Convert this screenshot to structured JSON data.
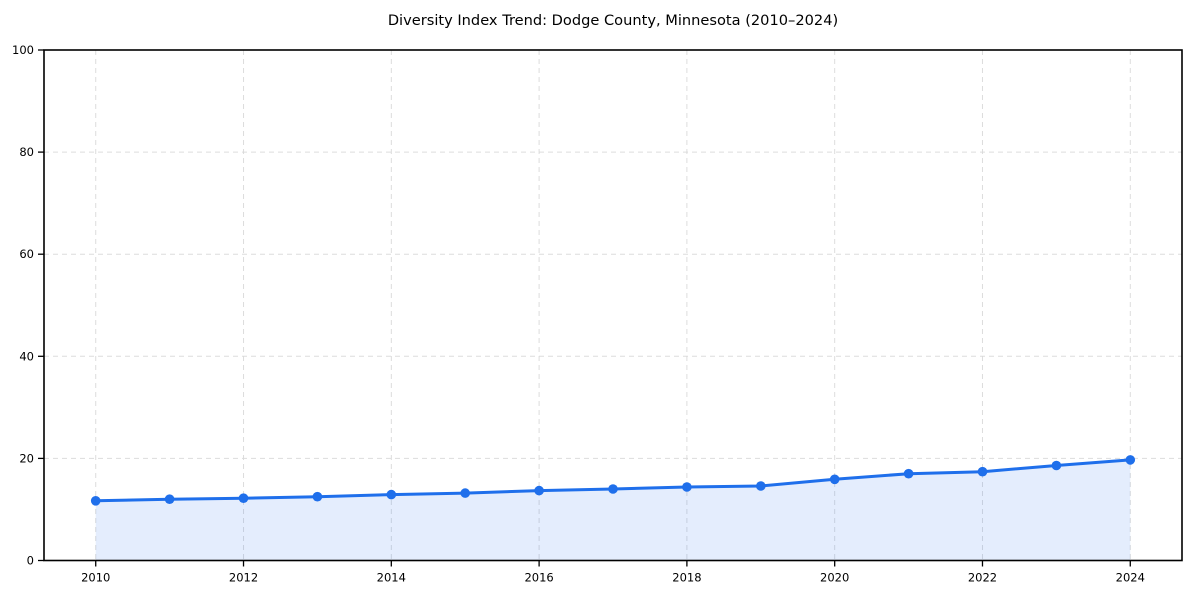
{
  "chart_data": {
    "type": "line",
    "title": "Diversity Index Trend: Dodge County, Minnesota (2010–2024)",
    "x": [
      2010,
      2011,
      2012,
      2013,
      2014,
      2015,
      2016,
      2017,
      2018,
      2019,
      2020,
      2021,
      2022,
      2023,
      2024
    ],
    "values": [
      11.7,
      12.0,
      12.2,
      12.5,
      12.9,
      13.2,
      13.7,
      14.0,
      14.4,
      14.6,
      15.9,
      17.0,
      17.4,
      18.6,
      19.7
    ],
    "xlabel": "",
    "ylabel": "",
    "xlim": [
      2009.3,
      2024.7
    ],
    "ylim": [
      0,
      100
    ],
    "xticks": [
      2010,
      2012,
      2014,
      2016,
      2018,
      2020,
      2022,
      2024
    ],
    "yticks": [
      0,
      20,
      40,
      60,
      80,
      100
    ],
    "grid": true,
    "grid_style": "dashed",
    "legend": "none",
    "area_fill": true,
    "marker": "circle",
    "line_color": "#1f6feb",
    "fill_color": "rgba(31,111,235,0.12)",
    "grid_color": "#d9d9d9",
    "spine_color": "#000000"
  }
}
